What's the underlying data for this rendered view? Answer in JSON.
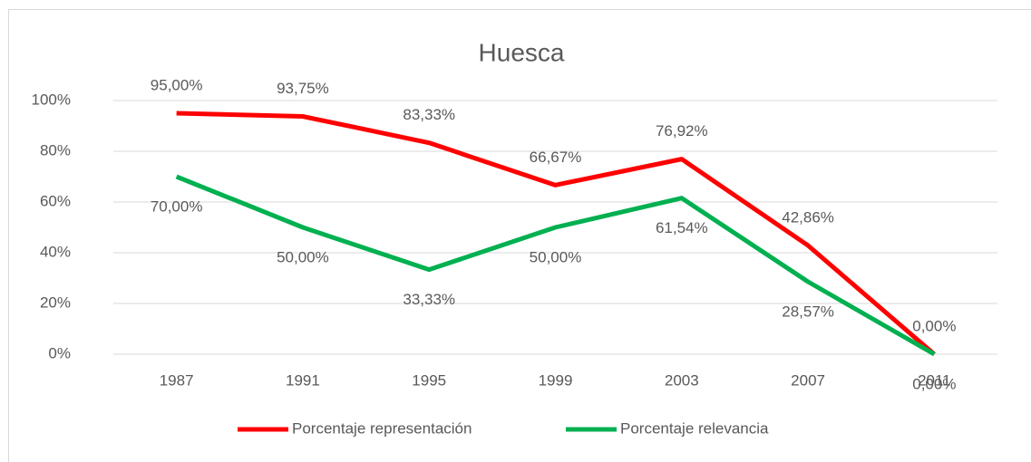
{
  "chart_data": {
    "type": "line",
    "title": "Huesca",
    "categories": [
      "1987",
      "1991",
      "1995",
      "1999",
      "2003",
      "2007",
      "2011"
    ],
    "series": [
      {
        "name": "Porcentaje representación",
        "color": "#ff0000",
        "values": [
          95,
          93.75,
          83.33,
          66.67,
          76.92,
          42.86,
          0
        ],
        "value_labels": [
          "95,00%",
          "93,75%",
          "83,33%",
          "66,67%",
          "76,92%",
          "42,86%",
          "0,00%"
        ]
      },
      {
        "name": "Porcentaje relevancia",
        "color": "#00b050",
        "values": [
          70,
          50,
          33.33,
          50,
          61.54,
          28.57,
          0
        ],
        "value_labels": [
          "70,00%",
          "50,00%",
          "33,33%",
          "50,00%",
          "61,54%",
          "28,57%",
          "0,00%"
        ]
      }
    ],
    "ylim": [
      0,
      100
    ],
    "yticks": [
      {
        "value": 0,
        "label": "0%"
      },
      {
        "value": 20,
        "label": "20%"
      },
      {
        "value": 40,
        "label": "40%"
      },
      {
        "value": 60,
        "label": "60%"
      },
      {
        "value": 80,
        "label": "80%"
      },
      {
        "value": 100,
        "label": "100%"
      }
    ],
    "grid": true,
    "legend": "bottom"
  }
}
